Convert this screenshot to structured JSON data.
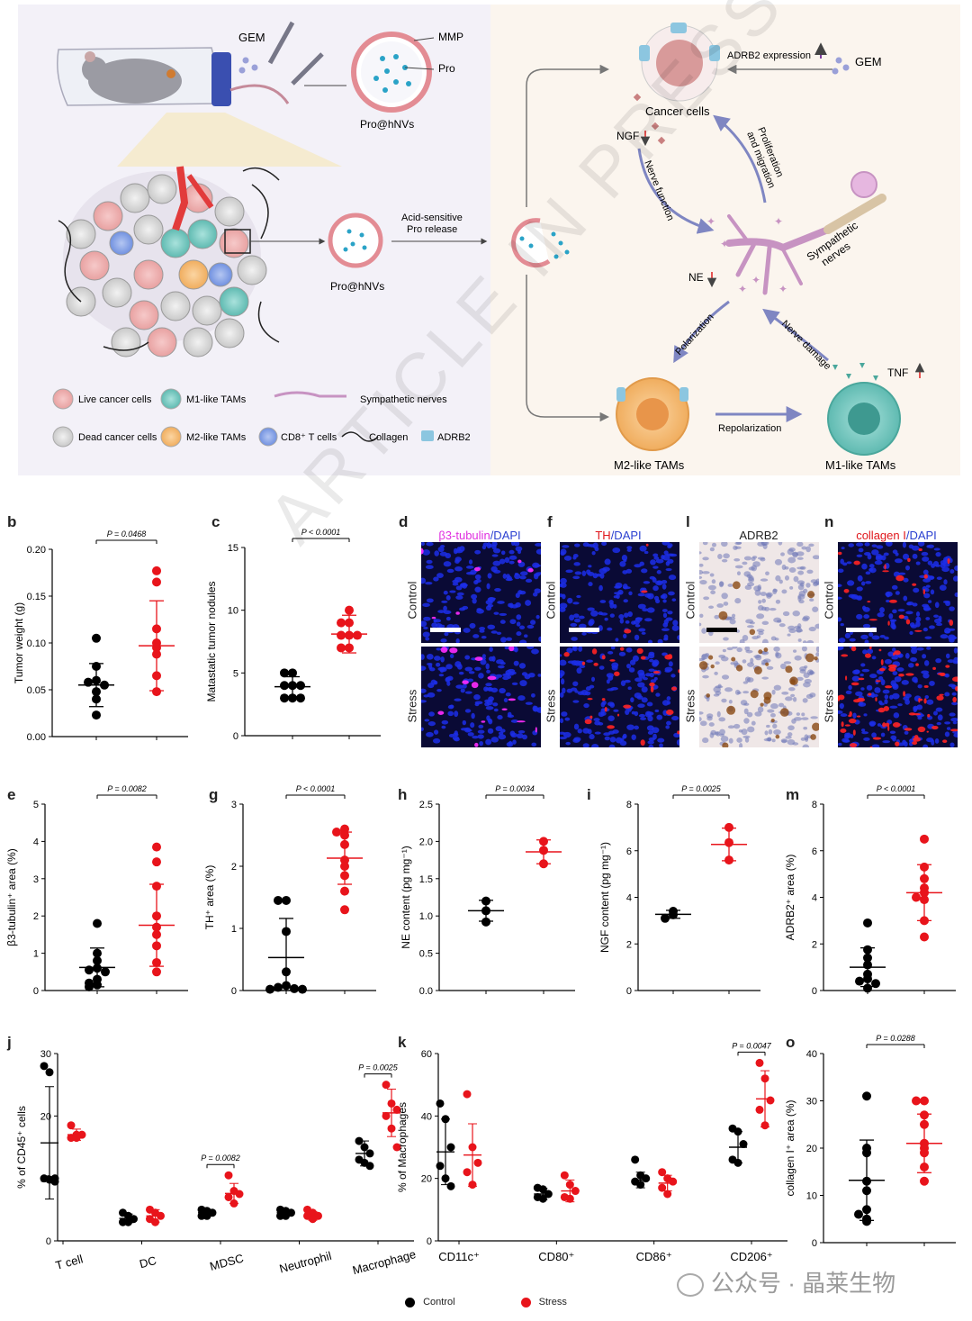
{
  "panel_letters": {
    "a": "a",
    "b": "b",
    "c": "c",
    "d": "d",
    "f": "f",
    "l": "l",
    "n": "n",
    "e": "e",
    "g": "g",
    "h": "h",
    "i": "i",
    "m": "m",
    "j": "j",
    "k": "k",
    "o": "o"
  },
  "schematic": {
    "gem_label": "GEM",
    "mmp_label": "MMP",
    "pro_label": "Pro",
    "nv_label_top": "Pro@hNVs",
    "nv_label_mid": "Pro@hNVs",
    "acid_release": "Acid-sensitive\nPro release",
    "cancer_cells": "Cancer cells",
    "adrb2_expr": "ADRB2 expression",
    "gem_right": "GEM",
    "ngf": "NGF",
    "nerve_function": "Nerve function",
    "prolif": "Proliferation\nand migration",
    "sympathetic": "Sympathetic\nnerves",
    "ne": "NE",
    "polarization": "Polarization",
    "nerve_damage": "Nerve damage",
    "tnf": "TNF",
    "repolarization": "Repolarization",
    "m2_tams": "M2-like TAMs",
    "m1_tams": "M1-like TAMs",
    "legend": {
      "live": "Live cancer cells",
      "m1": "M1-like TAMs",
      "symp": "Sympathetic nerves",
      "dead": "Dead cancer cells",
      "m2": "M2-like TAMs",
      "cd8": "CD8⁺ T cells",
      "collagen": "Collagen",
      "adrb2": "ADRB2"
    },
    "colors": {
      "bg_left": "#f3f1f8",
      "bg_right": "#fbf5ee",
      "arrow": "#7f86c2",
      "down_arrow": "#e01f1f"
    }
  },
  "micrographs": {
    "d_title_a": "β3-tubulin",
    "d_title_b": "/DAPI",
    "f_title_a": "TH",
    "f_title_b": "/DAPI",
    "l_title": "ADRB2",
    "n_title_a": "collagen I",
    "n_title_b": "/DAPI",
    "row_control": "Control",
    "row_stress": "Stress"
  },
  "watermark": "ARTICLE IN PRESS",
  "wechat": "公众号 · 晶莱生物",
  "legend": {
    "control": "Control",
    "stress": "Stress"
  },
  "colors": {
    "control": "#000000",
    "stress": "#e8141b"
  },
  "chart_data": [
    {
      "id": "b",
      "type": "scatter",
      "ylabel": "Tumor weight (g)",
      "ylim": [
        0,
        0.2
      ],
      "yticks": [
        "0.00",
        "0.05",
        "0.10",
        "0.15",
        "0.20"
      ],
      "pvalue": "P = 0.0468",
      "series": [
        {
          "name": "Control",
          "values": [
            0.105,
            0.075,
            0.06,
            0.058,
            0.055,
            0.048,
            0.04,
            0.023
          ],
          "mean": 0.055,
          "sd": 0.023
        },
        {
          "name": "Stress",
          "values": [
            0.177,
            0.165,
            0.115,
            0.1,
            0.095,
            0.088,
            0.065,
            0.048
          ],
          "mean": 0.097,
          "sd": 0.048
        }
      ]
    },
    {
      "id": "c",
      "type": "scatter",
      "ylabel": "Matastatic tumor nodules",
      "ylim": [
        0,
        15
      ],
      "yticks": [
        "0",
        "5",
        "10",
        "15"
      ],
      "pvalue": "P < 0.0001",
      "series": [
        {
          "name": "Control",
          "values": [
            5,
            5,
            4,
            4,
            4,
            3,
            3,
            3
          ],
          "mean": 3.9,
          "sd": 0.8
        },
        {
          "name": "Stress",
          "values": [
            10,
            9,
            9,
            8,
            8,
            8,
            7,
            7
          ],
          "mean": 8.1,
          "sd": 1.5
        }
      ]
    },
    {
      "id": "e",
      "type": "scatter",
      "ylabel": "β3-tubulin⁺ area (%)",
      "ylim": [
        0,
        5
      ],
      "yticks": [
        "0",
        "1",
        "2",
        "3",
        "4",
        "5"
      ],
      "pvalue": "P = 0.0082",
      "series": [
        {
          "name": "Control",
          "values": [
            1.8,
            1.0,
            0.8,
            0.6,
            0.55,
            0.5,
            0.3,
            0.2,
            0.15,
            0.1
          ],
          "mean": 0.62,
          "sd": 0.52
        },
        {
          "name": "Stress",
          "values": [
            3.85,
            3.45,
            2.8,
            2.0,
            1.7,
            1.5,
            1.2,
            0.75,
            0.5
          ],
          "mean": 1.75,
          "sd": 1.1
        }
      ]
    },
    {
      "id": "g",
      "type": "scatter",
      "ylabel": "TH⁺ area (%)",
      "ylim": [
        0,
        3
      ],
      "yticks": [
        "0",
        "1",
        "2",
        "3"
      ],
      "pvalue": "P < 0.0001",
      "series": [
        {
          "name": "Control",
          "values": [
            1.45,
            1.45,
            0.95,
            0.3,
            0.08,
            0.05,
            0.03,
            0.02,
            0.02
          ],
          "mean": 0.53,
          "sd": 0.63
        },
        {
          "name": "Stress",
          "values": [
            2.6,
            2.55,
            2.5,
            2.35,
            2.1,
            2.0,
            1.85,
            1.6,
            1.3
          ],
          "mean": 2.13,
          "sd": 0.42
        }
      ]
    },
    {
      "id": "h",
      "type": "scatter",
      "ylabel": "NE content (pg mg⁻¹)",
      "ylim": [
        0,
        2.5
      ],
      "yticks": [
        "0.0",
        "0.5",
        "1.0",
        "1.5",
        "2.0",
        "2.5"
      ],
      "pvalue": "P = 0.0034",
      "series": [
        {
          "name": "Control",
          "values": [
            1.2,
            1.07,
            0.92
          ],
          "mean": 1.07,
          "sd": 0.14
        },
        {
          "name": "Stress",
          "values": [
            2.0,
            1.88,
            1.7
          ],
          "mean": 1.86,
          "sd": 0.16
        }
      ]
    },
    {
      "id": "i",
      "type": "scatter",
      "ylabel": "NGF content (pg mg⁻¹)",
      "ylim": [
        0,
        8
      ],
      "yticks": [
        "0",
        "2",
        "4",
        "6",
        "8"
      ],
      "pvalue": "P = 0.0025",
      "series": [
        {
          "name": "Control",
          "values": [
            3.4,
            3.25,
            3.1
          ],
          "mean": 3.27,
          "sd": 0.17
        },
        {
          "name": "Stress",
          "values": [
            7.0,
            6.35,
            5.6
          ],
          "mean": 6.27,
          "sd": 0.7
        }
      ]
    },
    {
      "id": "m",
      "type": "scatter",
      "ylabel": "ADRB2⁺ area (%)",
      "ylim": [
        0,
        8
      ],
      "yticks": [
        "0",
        "2",
        "4",
        "6",
        "8"
      ],
      "pvalue": "P < 0.0001",
      "series": [
        {
          "name": "Control",
          "values": [
            2.9,
            1.75,
            1.4,
            1.1,
            0.7,
            0.5,
            0.4,
            0.3,
            0.1
          ],
          "mean": 1.0,
          "sd": 0.83
        },
        {
          "name": "Stress",
          "values": [
            6.5,
            5.3,
            4.8,
            4.4,
            4.2,
            4.0,
            3.9,
            3.0,
            2.3
          ],
          "mean": 4.2,
          "sd": 1.2
        }
      ]
    },
    {
      "id": "o",
      "type": "scatter",
      "ylabel": "collagen I⁺ area (%)",
      "ylim": [
        0,
        40
      ],
      "yticks": [
        "0",
        "10",
        "20",
        "30",
        "40"
      ],
      "pvalue": "P = 0.0288",
      "series": [
        {
          "name": "Control",
          "values": [
            31,
            20,
            19,
            13,
            11,
            7,
            6,
            5,
            4.5
          ],
          "mean": 13.2,
          "sd": 8.5
        },
        {
          "name": "Stress",
          "values": [
            30,
            30,
            27,
            25,
            21,
            20,
            19,
            16,
            13
          ],
          "mean": 21,
          "sd": 6.2
        }
      ]
    },
    {
      "id": "j",
      "type": "scatter",
      "ylabel": "% of CD45⁺ cells",
      "ylim": [
        0,
        30
      ],
      "yticks": [
        "0",
        "10",
        "20",
        "30"
      ],
      "categories": [
        "T cell",
        "DC",
        "MDSC",
        "Neutrophil",
        "Macrophage"
      ],
      "pvalues": [
        {
          "category": "MDSC",
          "text": "P = 0.0082"
        },
        {
          "category": "Macrophage",
          "text": "P = 0.0025"
        }
      ],
      "series": [
        {
          "name": "Control",
          "values": [
            [
              28,
              27,
              10,
              10,
              9.8,
              9.5
            ],
            [
              4.5,
              4,
              3.5,
              3,
              3
            ],
            [
              5,
              4.8,
              4.5,
              4,
              4
            ],
            [
              5,
              4.8,
              4.5,
              4,
              4
            ],
            [
              16,
              15,
              14,
              13,
              12.5,
              12
            ]
          ],
          "mean": [
            15.7,
            3.6,
            4.5,
            4.5,
            14
          ],
          "sd": [
            9,
            0.7,
            0.5,
            0.5,
            2
          ]
        },
        {
          "name": "Stress",
          "values": [
            [
              18.5,
              17,
              17,
              16.5,
              16.5
            ],
            [
              5,
              4.5,
              4,
              3.5,
              3
            ],
            [
              10.5,
              8,
              7.5,
              7,
              6
            ],
            [
              5,
              4.5,
              4,
              4,
              3.5
            ],
            [
              25,
              22,
              21,
              20,
              18,
              15
            ]
          ],
          "mean": [
            17,
            4,
            7.6,
            4,
            20.5
          ],
          "sd": [
            0.9,
            1,
            1.6,
            0.7,
            3.8
          ]
        }
      ]
    },
    {
      "id": "k",
      "type": "scatter",
      "ylabel": "% of Macrophages",
      "ylim": [
        0,
        60
      ],
      "yticks": [
        "0",
        "20",
        "40",
        "60"
      ],
      "categories": [
        "CD11c⁺",
        "CD80⁺",
        "CD86⁺",
        "CD206⁺"
      ],
      "pvalues": [
        {
          "category": "CD206⁺",
          "text": "P = 0.0047"
        }
      ],
      "series": [
        {
          "name": "Control",
          "values": [
            [
              44,
              39,
              30,
              24,
              20,
              17.5
            ],
            [
              17,
              16.5,
              15,
              14,
              13.5
            ],
            [
              26,
              21,
              20,
              19,
              18
            ],
            [
              36,
              35,
              31,
              26,
              25
            ]
          ],
          "mean": [
            28.5,
            15,
            19.5,
            30
          ],
          "sd": [
            10.5,
            1.8,
            2.5,
            5
          ]
        },
        {
          "name": "Stress",
          "values": [
            [
              47,
              30,
              25,
              22,
              18
            ],
            [
              21,
              18,
              16,
              14,
              13.5
            ],
            [
              22,
              20,
              19,
              17,
              15
            ],
            [
              57,
              52,
              45,
              42,
              37
            ]
          ],
          "mean": [
            27.5,
            16,
            18.5,
            45.5
          ],
          "sd": [
            10,
            3.5,
            2.5,
            9
          ]
        }
      ]
    }
  ]
}
